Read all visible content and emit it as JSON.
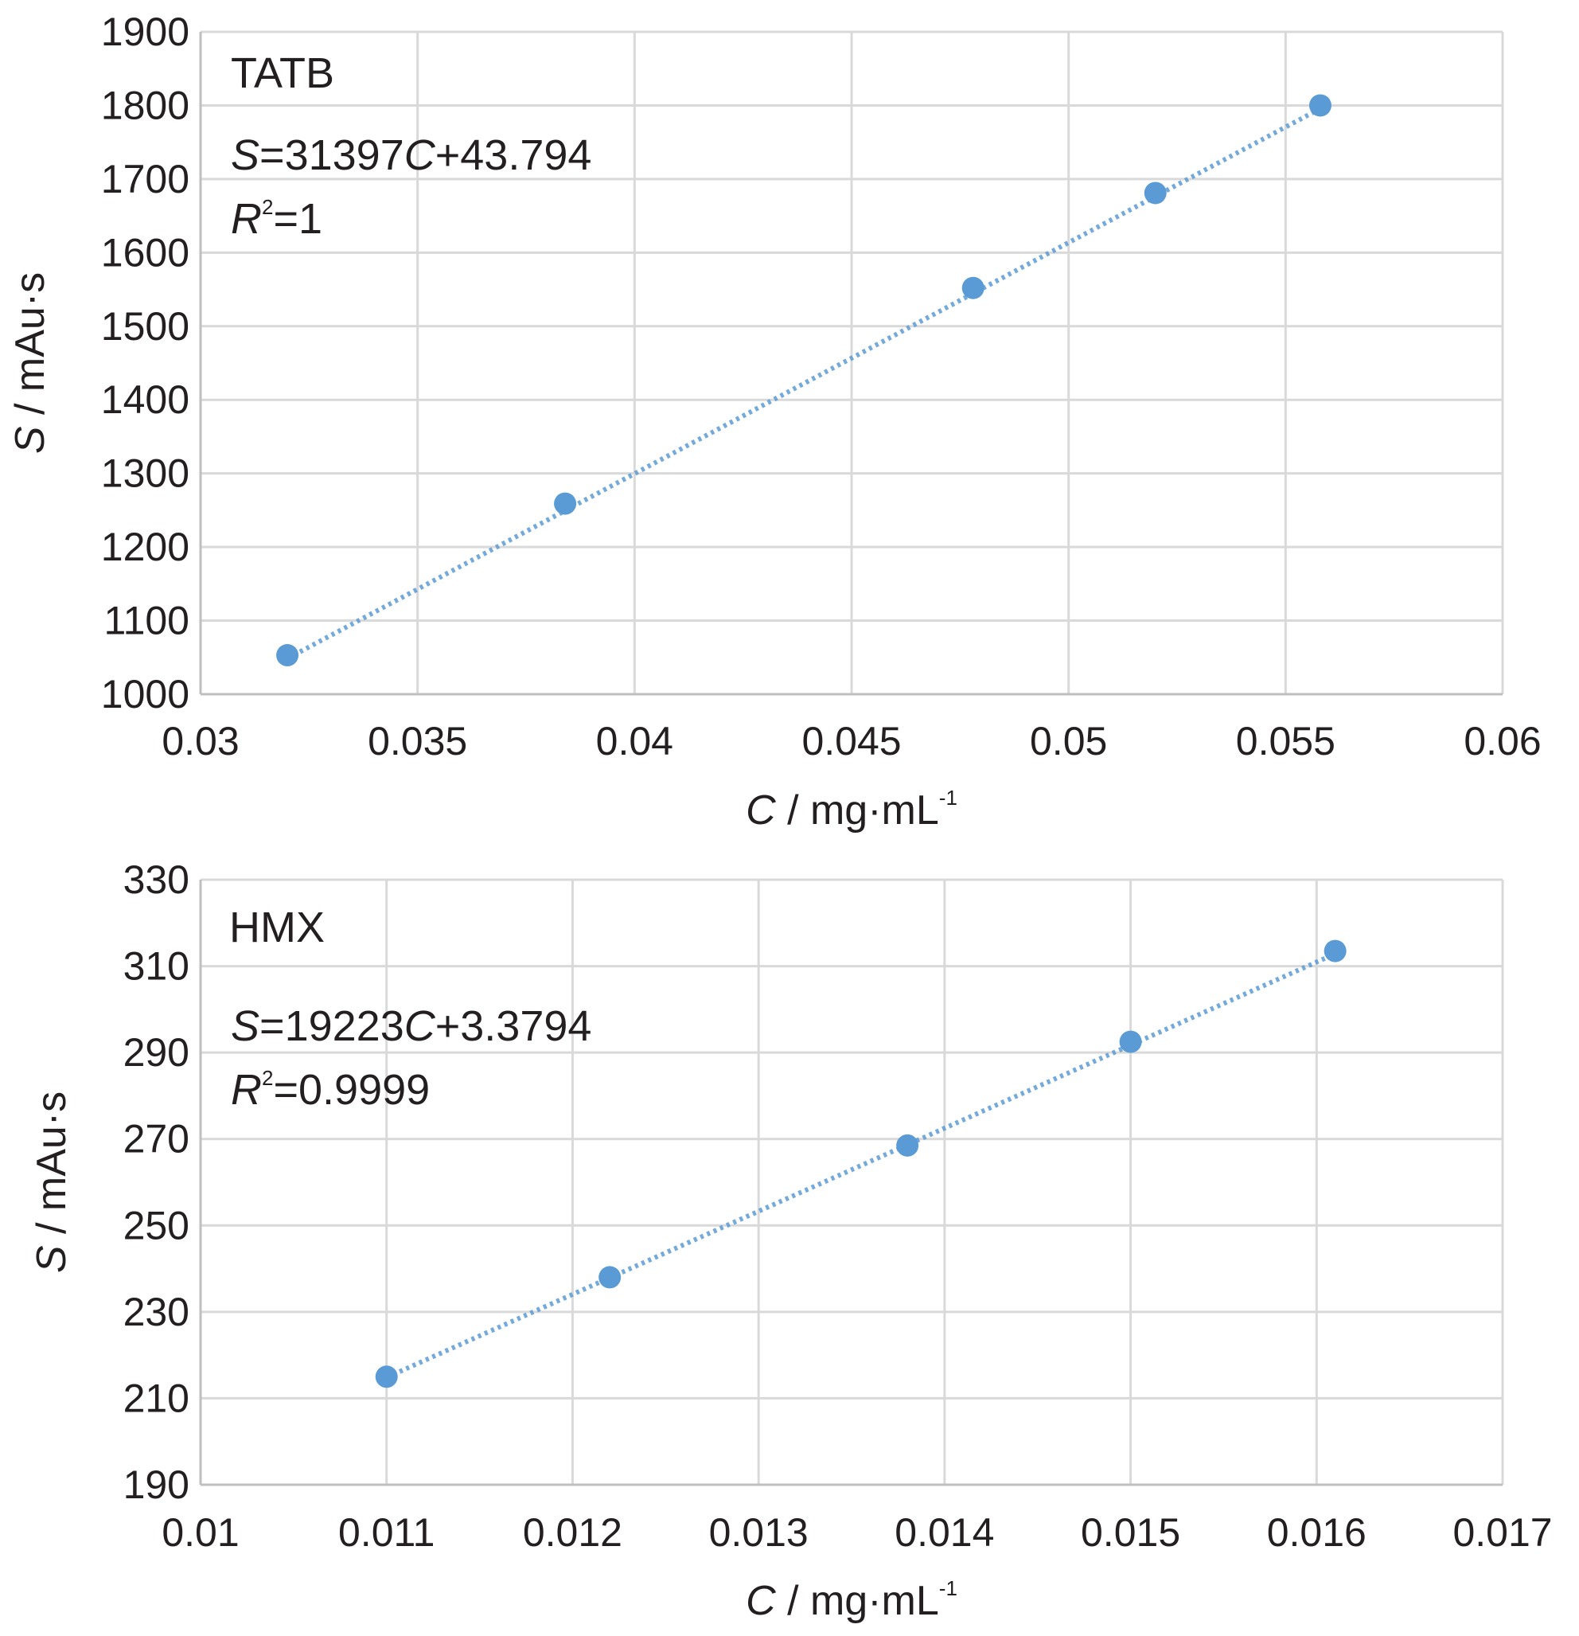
{
  "chart_data": [
    {
      "type": "scatter",
      "title": "",
      "panel_label": "TATB",
      "equation": {
        "lhs": "S",
        "eq": "=31397",
        "var": "C",
        "rest": "+43.794"
      },
      "r_squared": {
        "sym": "R",
        "sup": "2",
        "rest": "=1"
      },
      "xlabel": {
        "var": "C",
        "unit": " / mg·mL",
        "sup": "-1"
      },
      "ylabel": {
        "var": "S",
        "unit": " / mAu·s"
      },
      "xlim": [
        0.03,
        0.06
      ],
      "ylim": [
        1000,
        1900
      ],
      "xticks": [
        0.03,
        0.035,
        0.04,
        0.045,
        0.05,
        0.055,
        0.06
      ],
      "xtick_labels": [
        "0.03",
        "0.035",
        "0.04",
        "0.045",
        "0.05",
        "0.055",
        "0.06"
      ],
      "yticks": [
        1000,
        1100,
        1200,
        1300,
        1400,
        1500,
        1600,
        1700,
        1800,
        1900
      ],
      "ytick_labels": [
        "1000",
        "1100",
        "1200",
        "1300",
        "1400",
        "1500",
        "1600",
        "1700",
        "1800",
        "1900"
      ],
      "grid": true,
      "legend": "none",
      "trendline": {
        "slope": 31397,
        "intercept": 43.794,
        "style": "dotted"
      },
      "series": [
        {
          "x": [
            0.032,
            0.0384,
            0.0478,
            0.052,
            0.0558
          ],
          "y": [
            1053,
            1259,
            1552,
            1681,
            1800
          ]
        }
      ],
      "colors": {
        "marker": "#5b9bd5",
        "grid": "#d9d9d9",
        "axis": "#bfbfbf"
      }
    },
    {
      "type": "scatter",
      "title": "",
      "panel_label": "HMX",
      "equation": {
        "lhs": "S",
        "eq": "=19223",
        "var": "C",
        "rest": "+3.3794"
      },
      "r_squared": {
        "sym": "R",
        "sup": "2",
        "rest": "=0.9999"
      },
      "xlabel": {
        "var": "C",
        "unit": " / mg·mL",
        "sup": "-1"
      },
      "ylabel": {
        "var": "S",
        "unit": " / mAu·s"
      },
      "xlim": [
        0.01,
        0.017
      ],
      "ylim": [
        190,
        330
      ],
      "xticks": [
        0.01,
        0.011,
        0.012,
        0.013,
        0.014,
        0.015,
        0.016,
        0.017
      ],
      "xtick_labels": [
        "0.01",
        "0.011",
        "0.012",
        "0.013",
        "0.014",
        "0.015",
        "0.016",
        "0.017"
      ],
      "yticks": [
        190,
        210,
        230,
        250,
        270,
        290,
        310,
        330
      ],
      "ytick_labels": [
        "190",
        "210",
        "230",
        "250",
        "270",
        "290",
        "310",
        "330"
      ],
      "grid": true,
      "legend": "none",
      "trendline": {
        "slope": 19223,
        "intercept": 3.3794,
        "style": "dotted"
      },
      "series": [
        {
          "x": [
            0.011,
            0.0122,
            0.0138,
            0.015,
            0.0161
          ],
          "y": [
            215,
            238,
            268.5,
            292.5,
            313.5
          ]
        }
      ],
      "colors": {
        "marker": "#5b9bd5",
        "grid": "#d9d9d9",
        "axis": "#bfbfbf"
      }
    }
  ]
}
